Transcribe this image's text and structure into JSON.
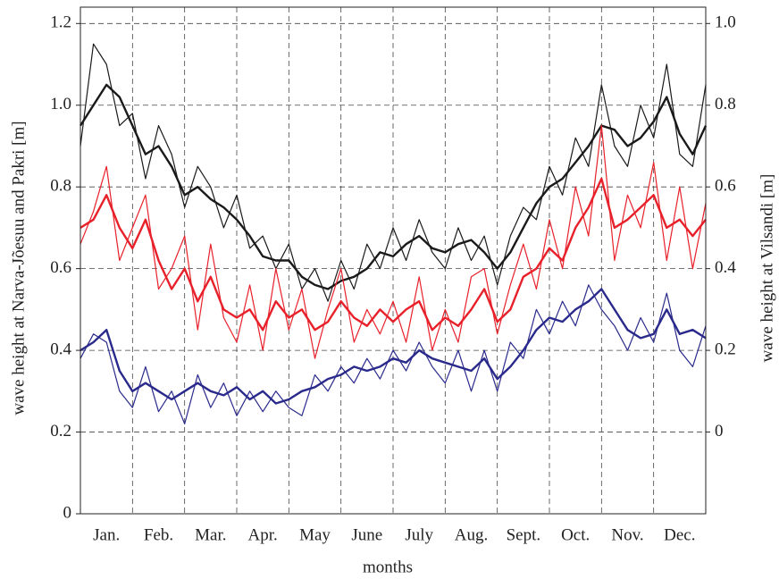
{
  "chart_data": {
    "type": "line",
    "ylabel": "wave height at Narva-Jõesuu and Pakri [m]",
    "y2label": "wave height at Vilsandi [m]",
    "xlabel": "months",
    "x": [
      0,
      0.25,
      0.5,
      0.75,
      1,
      1.25,
      1.5,
      1.75,
      2,
      2.25,
      2.5,
      2.75,
      3,
      3.25,
      3.5,
      3.75,
      4,
      4.25,
      4.5,
      4.75,
      5,
      5.25,
      5.5,
      5.75,
      6,
      6.25,
      6.5,
      6.75,
      7,
      7.25,
      7.5,
      7.75,
      8,
      8.25,
      8.5,
      8.75,
      9,
      9.25,
      9.5,
      9.75,
      10,
      10.25,
      10.5,
      10.75,
      11,
      11.25,
      11.5,
      11.75,
      12
    ],
    "xlim": [
      0,
      12
    ],
    "xticks": [
      {
        "value": 0.5,
        "label": "Jan."
      },
      {
        "value": 1.5,
        "label": "Feb."
      },
      {
        "value": 2.5,
        "label": "Mar."
      },
      {
        "value": 3.5,
        "label": "Apr."
      },
      {
        "value": 4.5,
        "label": "May"
      },
      {
        "value": 5.5,
        "label": "June"
      },
      {
        "value": 6.5,
        "label": "July"
      },
      {
        "value": 7.5,
        "label": "Aug."
      },
      {
        "value": 8.5,
        "label": "Sept."
      },
      {
        "value": 9.5,
        "label": "Oct."
      },
      {
        "value": 10.5,
        "label": "Nov."
      },
      {
        "value": 11.5,
        "label": "Dec."
      }
    ],
    "xgrid": [
      1,
      2,
      3,
      4,
      5,
      6,
      7,
      8,
      9,
      10,
      11
    ],
    "ylim": [
      0,
      1.24
    ],
    "yticks": [
      0,
      0.2,
      0.4,
      0.6,
      0.8,
      {
        "value": 1,
        "label": "1.0"
      },
      1.2
    ],
    "y2lim": [
      -0.2,
      1.04
    ],
    "y2ticks": [
      0,
      0.2,
      0.4,
      0.6,
      0.8,
      {
        "value": 1,
        "label": "1.0"
      }
    ],
    "grid": true,
    "series": [
      {
        "color": "#1a1a1a",
        "width": 1.2,
        "values": [
          0.9,
          1.15,
          1.1,
          0.95,
          0.98,
          0.82,
          0.95,
          0.88,
          0.75,
          0.85,
          0.8,
          0.7,
          0.78,
          0.65,
          0.68,
          0.6,
          0.66,
          0.55,
          0.6,
          0.52,
          0.62,
          0.55,
          0.66,
          0.6,
          0.7,
          0.62,
          0.72,
          0.64,
          0.6,
          0.7,
          0.62,
          0.68,
          0.56,
          0.68,
          0.75,
          0.72,
          0.85,
          0.78,
          0.92,
          0.85,
          1.05,
          0.9,
          0.85,
          1.0,
          0.92,
          1.1,
          0.88,
          0.85,
          1.05
        ]
      },
      {
        "color": "#1a1a1a",
        "width": 2.4,
        "values": [
          0.95,
          1.0,
          1.05,
          1.02,
          0.95,
          0.88,
          0.9,
          0.85,
          0.78,
          0.8,
          0.77,
          0.75,
          0.72,
          0.68,
          0.63,
          0.62,
          0.62,
          0.58,
          0.56,
          0.55,
          0.57,
          0.58,
          0.6,
          0.64,
          0.63,
          0.66,
          0.68,
          0.65,
          0.64,
          0.66,
          0.67,
          0.64,
          0.6,
          0.64,
          0.7,
          0.76,
          0.8,
          0.82,
          0.86,
          0.9,
          0.95,
          0.94,
          0.9,
          0.92,
          0.96,
          1.02,
          0.93,
          0.88,
          0.95
        ]
      },
      {
        "color": "#e8202a",
        "width": 1.2,
        "values": [
          0.66,
          0.74,
          0.85,
          0.62,
          0.7,
          0.78,
          0.55,
          0.6,
          0.68,
          0.45,
          0.66,
          0.48,
          0.42,
          0.56,
          0.4,
          0.6,
          0.45,
          0.55,
          0.38,
          0.5,
          0.6,
          0.42,
          0.5,
          0.44,
          0.52,
          0.42,
          0.58,
          0.4,
          0.5,
          0.42,
          0.58,
          0.6,
          0.44,
          0.56,
          0.66,
          0.55,
          0.72,
          0.6,
          0.8,
          0.68,
          0.95,
          0.62,
          0.78,
          0.7,
          0.86,
          0.62,
          0.8,
          0.6,
          0.76
        ]
      },
      {
        "color": "#e8202a",
        "width": 2.4,
        "values": [
          0.7,
          0.72,
          0.78,
          0.7,
          0.65,
          0.72,
          0.62,
          0.55,
          0.6,
          0.52,
          0.58,
          0.5,
          0.48,
          0.5,
          0.45,
          0.52,
          0.48,
          0.5,
          0.45,
          0.47,
          0.52,
          0.48,
          0.46,
          0.5,
          0.47,
          0.5,
          0.52,
          0.45,
          0.48,
          0.46,
          0.5,
          0.55,
          0.47,
          0.5,
          0.58,
          0.6,
          0.65,
          0.62,
          0.7,
          0.75,
          0.82,
          0.7,
          0.72,
          0.75,
          0.78,
          0.7,
          0.72,
          0.68,
          0.72
        ]
      },
      {
        "color": "#2a2a8c",
        "width": 1.2,
        "values": [
          0.38,
          0.44,
          0.42,
          0.3,
          0.26,
          0.36,
          0.25,
          0.3,
          0.22,
          0.34,
          0.26,
          0.32,
          0.24,
          0.3,
          0.25,
          0.3,
          0.26,
          0.24,
          0.34,
          0.3,
          0.36,
          0.32,
          0.38,
          0.33,
          0.4,
          0.35,
          0.42,
          0.36,
          0.32,
          0.4,
          0.3,
          0.4,
          0.3,
          0.42,
          0.38,
          0.5,
          0.44,
          0.52,
          0.46,
          0.56,
          0.5,
          0.46,
          0.4,
          0.48,
          0.42,
          0.54,
          0.4,
          0.36,
          0.46
        ]
      },
      {
        "color": "#2a2a8c",
        "width": 2.4,
        "values": [
          0.4,
          0.42,
          0.45,
          0.35,
          0.3,
          0.32,
          0.3,
          0.28,
          0.3,
          0.32,
          0.3,
          0.29,
          0.31,
          0.28,
          0.3,
          0.27,
          0.28,
          0.3,
          0.31,
          0.33,
          0.34,
          0.36,
          0.35,
          0.36,
          0.38,
          0.37,
          0.4,
          0.38,
          0.37,
          0.36,
          0.35,
          0.38,
          0.33,
          0.36,
          0.4,
          0.45,
          0.48,
          0.47,
          0.5,
          0.52,
          0.55,
          0.5,
          0.45,
          0.43,
          0.44,
          0.5,
          0.44,
          0.45,
          0.43
        ]
      }
    ]
  }
}
